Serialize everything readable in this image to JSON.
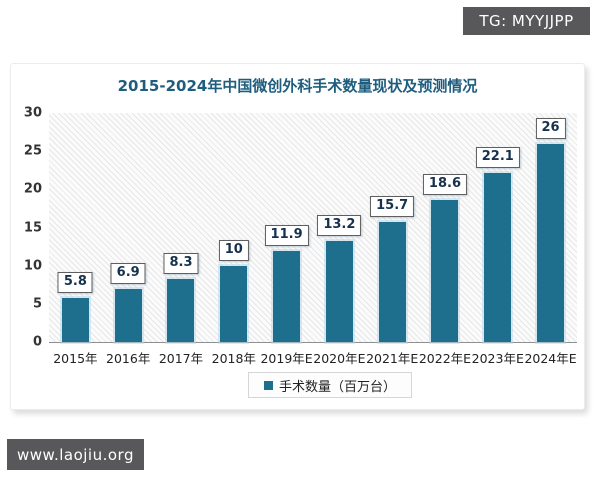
{
  "page": {
    "telegram_badge": "TG: MYYJJPP",
    "website_badge": "www.laojiu.org"
  },
  "chart_data": {
    "type": "bar",
    "title": "2015-2024年中国微创外科手术数量现状及预测情况",
    "categories": [
      "2015年",
      "2016年",
      "2017年",
      "2018年",
      "2019年E",
      "2020年E",
      "2021年E",
      "2022年E",
      "2023年E",
      "2024年E"
    ],
    "values": [
      5.8,
      6.9,
      8.3,
      10,
      11.9,
      13.2,
      15.7,
      18.6,
      22.1,
      26
    ],
    "value_labels": [
      "5.8",
      "6.9",
      "8.3",
      "10",
      "11.9",
      "13.2",
      "15.7",
      "18.6",
      "22.1",
      "26"
    ],
    "legend": "手术数量（百万台）",
    "xlabel": "",
    "ylabel": "",
    "ylim": [
      0,
      30
    ],
    "yticks": [
      0,
      5,
      10,
      15,
      20,
      25,
      30
    ],
    "grid": false,
    "legend_position": "bottom",
    "plot_background": "diagonal-hatch",
    "colors": {
      "bar": "#1e6e8e",
      "title": "#1f5d7f",
      "value_label_text": "#17324e",
      "badge_background": "#58585a",
      "badge_text": "#ffffff"
    }
  }
}
